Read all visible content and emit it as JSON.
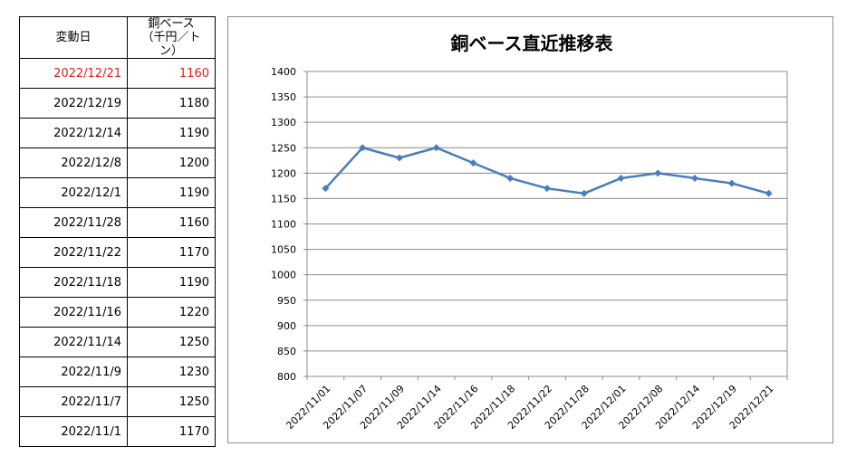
{
  "table": {
    "header_date": "変動日",
    "header_price_line1": "銅ベース",
    "header_price_line2": "（千円／トン）",
    "rows": [
      {
        "date": "2022/12/21",
        "price": "1160"
      },
      {
        "date": "2022/12/19",
        "price": "1180"
      },
      {
        "date": "2022/12/14",
        "price": "1190"
      },
      {
        "date": "2022/12/8",
        "price": "1200"
      },
      {
        "date": "2022/12/1",
        "price": "1190"
      },
      {
        "date": "2022/11/28",
        "price": "1160"
      },
      {
        "date": "2022/11/22",
        "price": "1170"
      },
      {
        "date": "2022/11/18",
        "price": "1190"
      },
      {
        "date": "2022/11/16",
        "price": "1220"
      },
      {
        "date": "2022/11/14",
        "price": "1250"
      },
      {
        "date": "2022/11/9",
        "price": "1230"
      },
      {
        "date": "2022/11/7",
        "price": "1250"
      },
      {
        "date": "2022/11/1",
        "price": "1170"
      }
    ],
    "latest_color": "#e0201b"
  },
  "chart_data": {
    "type": "line",
    "title": "銅ベース直近推移表",
    "x": [
      "2022/11/01",
      "2022/11/07",
      "2022/11/09",
      "2022/11/14",
      "2022/11/16",
      "2022/11/18",
      "2022/11/22",
      "2022/11/28",
      "2022/12/01",
      "2022/12/08",
      "2022/12/14",
      "2022/12/19",
      "2022/12/21"
    ],
    "series": [
      {
        "values": [
          1170,
          1250,
          1230,
          1250,
          1220,
          1190,
          1170,
          1160,
          1190,
          1200,
          1190,
          1180,
          1160
        ],
        "color": "#4a7ebb"
      }
    ],
    "ylim": [
      800,
      1400
    ],
    "ytick_step": 50,
    "grid": true,
    "legend": "none"
  }
}
